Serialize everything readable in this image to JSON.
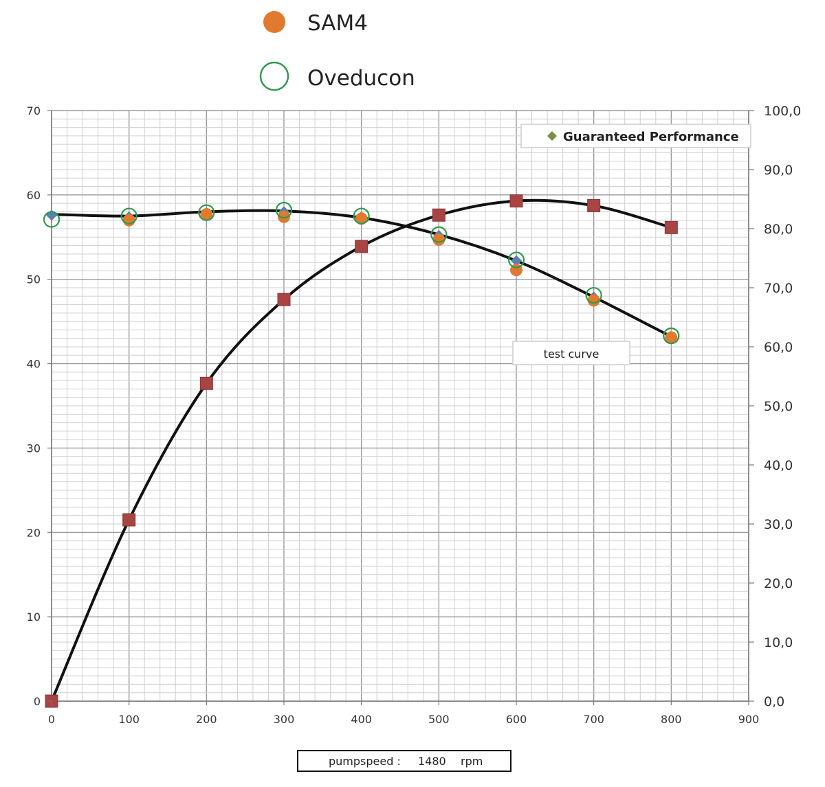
{
  "chart_data": {
    "type": "line",
    "title": "",
    "xlabel": "",
    "ylabel_left": "",
    "ylabel_right": "",
    "xlim": [
      0,
      900
    ],
    "ylim_left": [
      0,
      70
    ],
    "ylim_right": [
      0,
      100
    ],
    "x_ticks": [
      "0",
      "100",
      "200",
      "300",
      "400",
      "500",
      "600",
      "700",
      "800",
      "900"
    ],
    "y_left_ticks": [
      "0",
      "10",
      "20",
      "30",
      "40",
      "50",
      "60",
      "70"
    ],
    "y_right_ticks": [
      "0,0",
      "10,0",
      "20,0",
      "30,0",
      "40,0",
      "50,0",
      "60,0",
      "70,0",
      "80,0",
      "90,0",
      "100,0"
    ],
    "grid": true,
    "legend_top": [
      {
        "label": "SAM4",
        "marker": "filled-circle",
        "color": "#e07a2e"
      },
      {
        "label": "Oveducon",
        "marker": "open-circle",
        "color": "#2f9a4e"
      }
    ],
    "legend_inner": {
      "label": "Guaranteed Performance",
      "marker": "diamond",
      "color": "#7f8f4a",
      "placement": "top-right"
    },
    "annotation": "test curve",
    "footer": {
      "label": "pumpspeed :",
      "value": "1480",
      "unit": "rpm"
    },
    "series": [
      {
        "id": "head_guaranteed",
        "axis": "left",
        "marker": "diamond",
        "color": "#5b7fae",
        "x": [
          0,
          100,
          200,
          300,
          400,
          500,
          600,
          700,
          800
        ],
        "y": [
          57.6,
          57.4,
          57.9,
          58.0,
          57.4,
          55.2,
          52.2,
          47.9,
          43.2
        ]
      },
      {
        "id": "head_sam4",
        "axis": "left",
        "marker": "filled-circle",
        "color": "#e07a2e",
        "x": [
          100,
          200,
          300,
          400,
          500,
          600,
          700,
          800
        ],
        "y": [
          57.0,
          57.7,
          57.4,
          57.2,
          54.7,
          51.1,
          47.5,
          43.1
        ]
      },
      {
        "id": "head_oveducon",
        "axis": "left",
        "marker": "open-circle",
        "color": "#2f9a4e",
        "x": [
          0,
          100,
          200,
          300,
          400,
          500,
          600,
          700,
          800
        ],
        "y": [
          57.1,
          57.5,
          57.9,
          58.2,
          57.5,
          55.3,
          52.3,
          48.1,
          43.3
        ]
      },
      {
        "id": "efficiency",
        "axis": "right",
        "marker": "square",
        "color": "#a84444",
        "x": [
          0,
          100,
          200,
          300,
          400,
          500,
          600,
          700,
          800
        ],
        "y": [
          0.0,
          30.7,
          53.8,
          68.0,
          77.0,
          82.3,
          84.7,
          83.9,
          80.2
        ]
      }
    ],
    "curves": [
      {
        "id": "head_curve",
        "axis": "left",
        "color": "#111111",
        "x": [
          0,
          100,
          200,
          300,
          400,
          500,
          600,
          700,
          800
        ],
        "y": [
          57.7,
          57.5,
          58.0,
          58.1,
          57.3,
          55.3,
          52.2,
          47.9,
          43.2
        ]
      },
      {
        "id": "efficiency_curve",
        "axis": "right",
        "color": "#111111",
        "x": [
          0,
          100,
          200,
          300,
          400,
          500,
          600,
          700,
          800
        ],
        "y": [
          0.0,
          30.7,
          53.8,
          68.0,
          77.0,
          82.3,
          84.7,
          83.9,
          80.2
        ]
      }
    ]
  }
}
